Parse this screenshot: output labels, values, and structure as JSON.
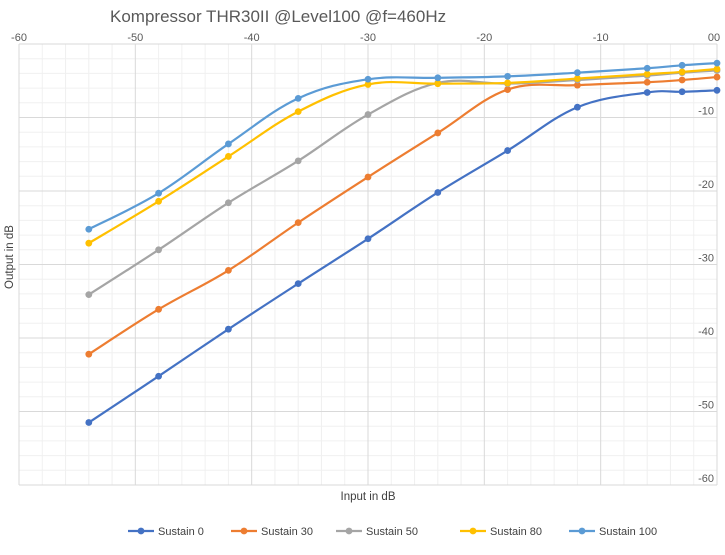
{
  "chart_data": {
    "type": "line",
    "title": "Kompressor THR30II  @Level100 @f=460Hz",
    "xlabel": "Input in dB",
    "ylabel": "Output in dB",
    "xlim": [
      -60,
      0
    ],
    "ylim": [
      -60,
      0
    ],
    "x_major": 10,
    "x_minor": 2,
    "y_major": 10,
    "y_minor": 2,
    "grid": "major and minor",
    "legend_position": "bottom",
    "x_ticks": [
      "-60",
      "-50",
      "-40",
      "-30",
      "-20",
      "-10",
      "0"
    ],
    "y_ticks": [
      "0",
      "-10",
      "-20",
      "-30",
      "-40",
      "-50",
      "-60"
    ],
    "x": [
      -54,
      -48,
      -42,
      -36,
      -30,
      -24,
      -18,
      -12,
      -6,
      -3,
      0
    ],
    "series": [
      {
        "name": "Sustain 0",
        "color": "#4472C4",
        "values": [
          -51.5,
          -45.2,
          -38.8,
          -32.6,
          -26.5,
          -20.2,
          -14.5,
          -8.6,
          -6.6,
          -6.5,
          -6.3
        ]
      },
      {
        "name": "Sustain 30",
        "color": "#ED7D31",
        "values": [
          -42.2,
          -36.1,
          -30.8,
          -24.3,
          -18.1,
          -12.1,
          -6.2,
          -5.6,
          -5.2,
          -4.9,
          -4.5
        ]
      },
      {
        "name": "Sustain 50",
        "color": "#A5A5A5",
        "values": [
          -34.1,
          -28.0,
          -21.6,
          -15.9,
          -9.6,
          -5.3,
          -5.4,
          -4.9,
          -4.3,
          -3.9,
          -3.6
        ]
      },
      {
        "name": "Sustain 80",
        "color": "#FFC000",
        "values": [
          -27.1,
          -21.4,
          -15.3,
          -9.2,
          -5.5,
          -5.4,
          -5.3,
          -4.7,
          -4.1,
          -3.8,
          -3.4
        ]
      },
      {
        "name": "Sustain 100",
        "color": "#5B9BD5",
        "values": [
          -25.2,
          -20.3,
          -13.6,
          -7.4,
          -4.8,
          -4.6,
          -4.4,
          -3.9,
          -3.3,
          -2.9,
          -2.6
        ]
      }
    ]
  }
}
